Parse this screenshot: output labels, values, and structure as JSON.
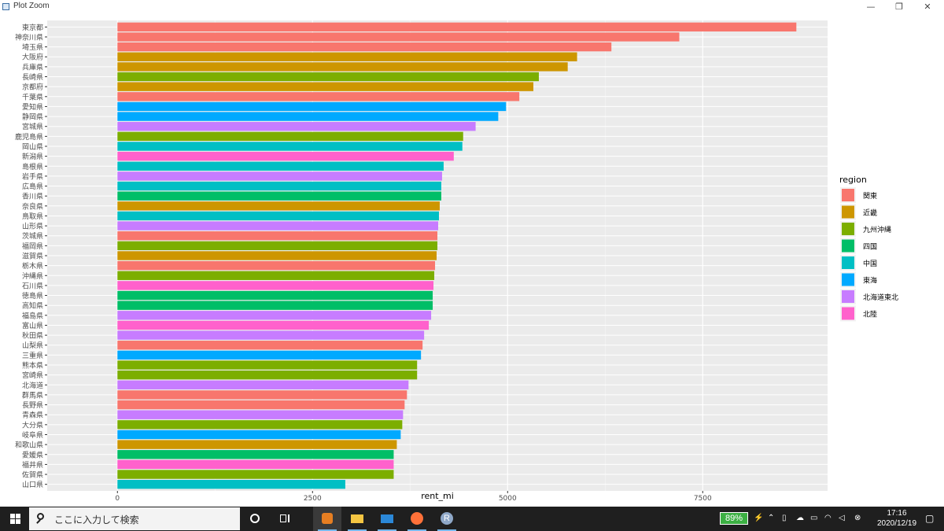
{
  "window": {
    "title": "Plot Zoom",
    "minimize": "—",
    "restore": "❐",
    "close": "✕"
  },
  "chart_data": {
    "type": "bar",
    "orientation": "horizontal",
    "xlabel": "rent_mi",
    "ylabel": "",
    "xlim": [
      -900,
      9100
    ],
    "xticks": [
      0,
      2500,
      5000,
      7500
    ],
    "xtick_labels": [
      "0",
      "2500",
      "5000",
      "7500"
    ],
    "grid": true,
    "legend_position": "right",
    "legend_title": "region",
    "regions": [
      "関東",
      "近畿",
      "九州沖縄",
      "四国",
      "中国",
      "東海",
      "北海道東北",
      "北陸"
    ],
    "region_colors": {
      "関東": "#F8766D",
      "近畿": "#CD9600",
      "九州沖縄": "#7CAE00",
      "四国": "#00BE67",
      "中国": "#00BFC4",
      "東海": "#00A9FF",
      "北海道東北": "#C77CFF",
      "北陸": "#FF61CC"
    },
    "categories": [
      "東京都",
      "神奈川県",
      "埼玉県",
      "大阪府",
      "兵庫県",
      "長崎県",
      "京都府",
      "千葉県",
      "愛知県",
      "静岡県",
      "宮城県",
      "鹿児島県",
      "岡山県",
      "新潟県",
      "島根県",
      "岩手県",
      "広島県",
      "香川県",
      "奈良県",
      "鳥取県",
      "山形県",
      "茨城県",
      "福岡県",
      "滋賀県",
      "栃木県",
      "沖縄県",
      "石川県",
      "徳島県",
      "高知県",
      "福島県",
      "富山県",
      "秋田県",
      "山梨県",
      "三重県",
      "熊本県",
      "宮崎県",
      "北海道",
      "群馬県",
      "長野県",
      "青森県",
      "大分県",
      "岐阜県",
      "和歌山県",
      "愛媛県",
      "福井県",
      "佐賀県",
      "山口県"
    ],
    "values": [
      8700,
      7200,
      6330,
      5890,
      5770,
      5400,
      5330,
      5150,
      4980,
      4880,
      4590,
      4430,
      4420,
      4310,
      4180,
      4160,
      4150,
      4150,
      4130,
      4120,
      4110,
      4100,
      4100,
      4090,
      4070,
      4060,
      4050,
      4040,
      4040,
      4020,
      3990,
      3930,
      3910,
      3890,
      3840,
      3840,
      3730,
      3710,
      3680,
      3660,
      3650,
      3630,
      3580,
      3540,
      3540,
      3540,
      2920
    ],
    "region_of_bar": [
      "関東",
      "関東",
      "関東",
      "近畿",
      "近畿",
      "九州沖縄",
      "近畿",
      "関東",
      "東海",
      "東海",
      "北海道東北",
      "九州沖縄",
      "中国",
      "北陸",
      "中国",
      "北海道東北",
      "中国",
      "四国",
      "近畿",
      "中国",
      "北海道東北",
      "関東",
      "九州沖縄",
      "近畿",
      "関東",
      "九州沖縄",
      "北陸",
      "四国",
      "四国",
      "北海道東北",
      "北陸",
      "北海道東北",
      "関東",
      "東海",
      "九州沖縄",
      "九州沖縄",
      "北海道東北",
      "関東",
      "関東",
      "北海道東北",
      "九州沖縄",
      "東海",
      "近畿",
      "四国",
      "北陸",
      "九州沖縄",
      "中国"
    ]
  },
  "taskbar": {
    "search_placeholder": "ここに入力して検索",
    "battery": "89%",
    "time": "17:16",
    "date": "2020/12/19",
    "r_label": "R"
  }
}
